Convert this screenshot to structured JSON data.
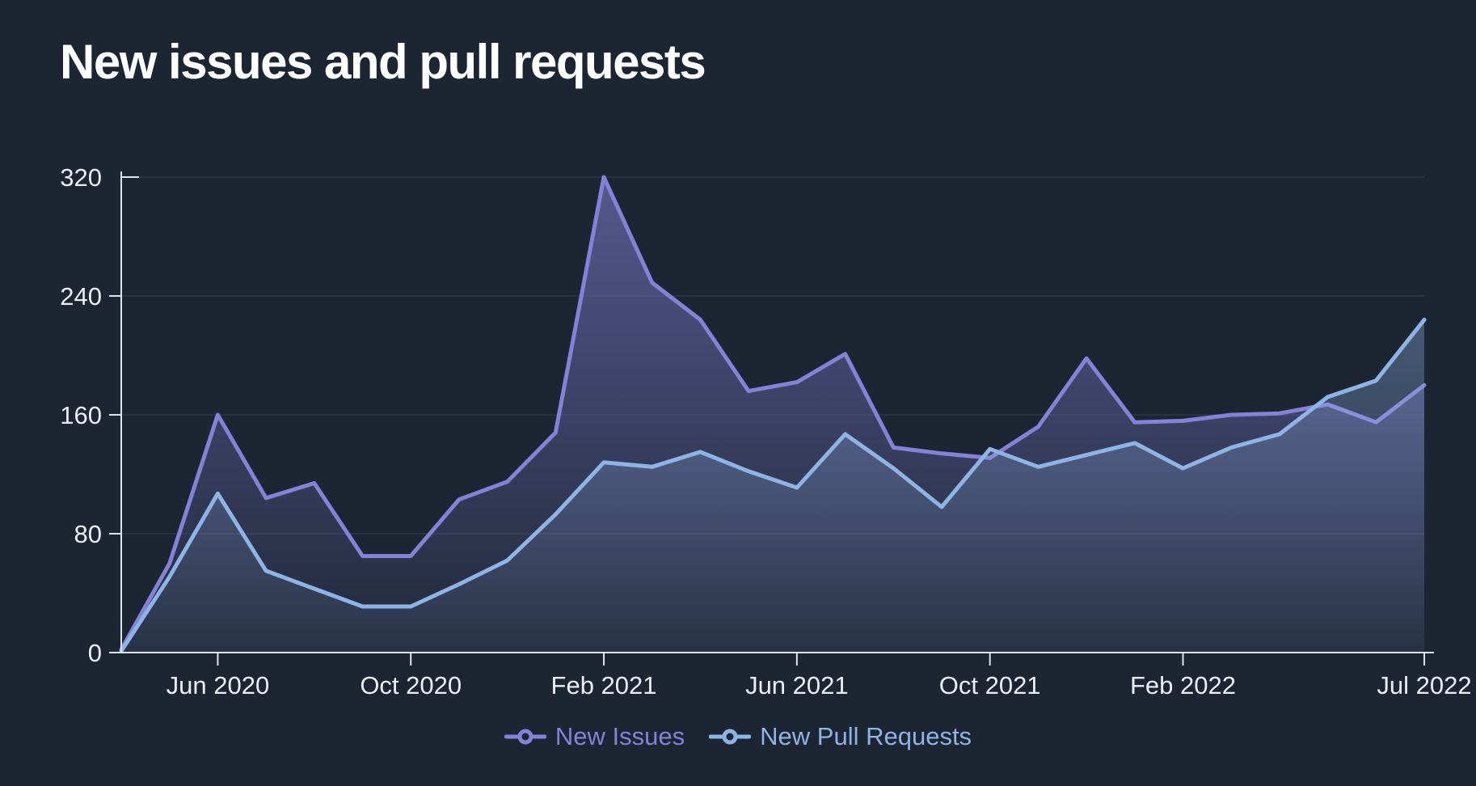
{
  "title": "New issues and pull requests",
  "colors": {
    "background": "#1d2533",
    "title": "#ffffff",
    "grid": "#273140",
    "axis": "#dfe4ec",
    "tick_label": "#eceef4",
    "issues": "#8681d8",
    "pull_requests": "#8db4e6"
  },
  "legend": [
    {
      "label": "New Issues",
      "series_key": "issues"
    },
    {
      "label": "New Pull Requests",
      "series_key": "pull_requests"
    }
  ],
  "chart_data": {
    "type": "area",
    "title": "New issues and pull requests",
    "xlabel": "",
    "ylabel": "",
    "ylim": [
      0,
      320
    ],
    "y_ticks": [
      0,
      80,
      160,
      240,
      320
    ],
    "grid": true,
    "legend_position": "bottom",
    "x": [
      "Apr 2020",
      "May 2020",
      "Jun 2020",
      "Jul 2020",
      "Aug 2020",
      "Sep 2020",
      "Oct 2020",
      "Nov 2020",
      "Dec 2020",
      "Jan 2021",
      "Feb 2021",
      "Mar 2021",
      "Apr 2021",
      "May 2021",
      "Jun 2021",
      "Jul 2021",
      "Aug 2021",
      "Sep 2021",
      "Oct 2021",
      "Nov 2021",
      "Dec 2021",
      "Jan 2022",
      "Feb 2022",
      "Mar 2022",
      "Apr 2022",
      "May 2022",
      "Jun 2022",
      "Jul 2022"
    ],
    "x_tick_labels": [
      "Jun 2020",
      "Oct 2020",
      "Feb 2021",
      "Jun 2021",
      "Oct 2021",
      "Feb 2022",
      "Jul 2022"
    ],
    "x_tick_indices": [
      2,
      6,
      10,
      14,
      18,
      22,
      27
    ],
    "series": [
      {
        "name": "New Issues",
        "key": "issues",
        "values": [
          2,
          60,
          160,
          104,
          114,
          65,
          65,
          103,
          115,
          148,
          320,
          249,
          224,
          176,
          182,
          201,
          138,
          134,
          131,
          152,
          198,
          155,
          156,
          160,
          161,
          167,
          155,
          180
        ]
      },
      {
        "name": "New Pull Requests",
        "key": "pull_requests",
        "values": [
          1,
          51,
          107,
          55,
          43,
          31,
          31,
          46,
          62,
          93,
          128,
          125,
          135,
          122,
          111,
          147,
          124,
          98,
          137,
          125,
          133,
          141,
          124,
          138,
          147,
          172,
          183,
          224
        ]
      }
    ]
  }
}
